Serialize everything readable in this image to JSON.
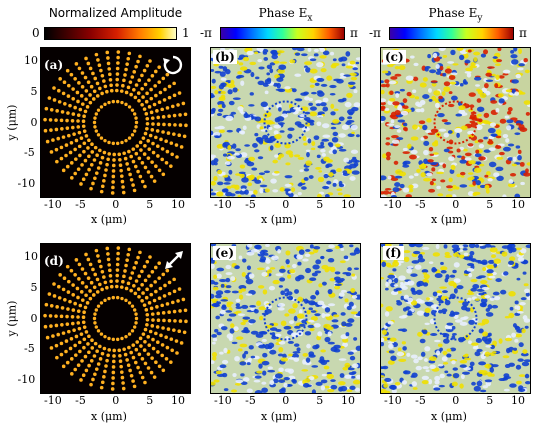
{
  "titles": {
    "amplitude": "Normalized Amplitude",
    "phase_x_main": "Phase E",
    "phase_x_sub": "x",
    "phase_y_main": "Phase E",
    "phase_y_sub": "y"
  },
  "colorbars": {
    "amp_min": "0",
    "amp_max": "1",
    "phase_min": "-π",
    "phase_max": "π"
  },
  "panels": {
    "a": "(a)",
    "b": "(b)",
    "c": "(c)",
    "d": "(d)",
    "e": "(e)",
    "f": "(f)"
  },
  "axes": {
    "xlabel": "x (μm)",
    "ylabel": "y (μm)",
    "xticks": [
      "-10",
      "-5",
      "0",
      "5",
      "10"
    ],
    "yticks": [
      "10",
      "5",
      "0",
      "-5",
      "-10"
    ]
  },
  "icons": {
    "top": "circular-arrow-icon",
    "bottom": "double-arrow-icon"
  },
  "colors": {
    "amp_bg": "#050000",
    "amp_spot": "#ffb020",
    "phase_blue": "#1040d0",
    "phase_yellow": "#f0e000",
    "phase_red": "#d82000"
  }
}
